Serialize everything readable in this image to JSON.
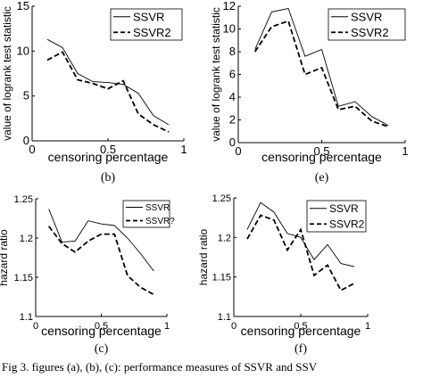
{
  "figure": {
    "caption": "Fig 3.  figures (a), (b), (c): performance measures of SSVR and SSV"
  },
  "chart_data": [
    {
      "type": "line",
      "panel_label": "(b)",
      "xlabel": "censoring percentage",
      "ylabel": "value of logrank test statistic",
      "xlim": [
        0,
        1
      ],
      "ylim": [
        0,
        15
      ],
      "xticks": [
        "0",
        "0.5",
        "1"
      ],
      "yticks": [
        "0",
        "5",
        "10",
        "15"
      ],
      "legend_position": "top-right",
      "series": [
        {
          "name": "SSVR",
          "dash": "solid",
          "x": [
            0.1,
            0.2,
            0.3,
            0.4,
            0.5,
            0.6,
            0.7,
            0.8,
            0.9
          ],
          "y": [
            11.3,
            10.4,
            7.5,
            6.6,
            6.5,
            6.3,
            5.3,
            2.8,
            1.8
          ]
        },
        {
          "name": "SSVR2",
          "dash": "dashed",
          "x": [
            0.1,
            0.2,
            0.3,
            0.4,
            0.5,
            0.6,
            0.7,
            0.8,
            0.9
          ],
          "y": [
            9.0,
            9.9,
            6.8,
            6.4,
            5.8,
            6.7,
            3.0,
            1.8,
            1.0
          ]
        }
      ]
    },
    {
      "type": "line",
      "panel_label": "(e)",
      "xlabel": "censoring percentage",
      "ylabel": "value of logrank test statistic",
      "xlim": [
        0,
        1
      ],
      "ylim": [
        0,
        12
      ],
      "xticks": [
        "0",
        "0.5",
        "1"
      ],
      "yticks": [
        "0",
        "2",
        "4",
        "6",
        "8",
        "10",
        "12"
      ],
      "legend_position": "top-right",
      "series": [
        {
          "name": "SSVR",
          "dash": "solid",
          "x": [
            0.1,
            0.2,
            0.3,
            0.4,
            0.5,
            0.6,
            0.7,
            0.8,
            0.9
          ],
          "y": [
            8.2,
            11.5,
            11.8,
            7.6,
            8.2,
            3.2,
            3.6,
            2.3,
            1.5
          ]
        },
        {
          "name": "SSVR2",
          "dash": "dashed",
          "x": [
            0.1,
            0.2,
            0.3,
            0.4,
            0.5,
            0.6,
            0.7,
            0.8,
            0.9
          ],
          "y": [
            8.0,
            10.2,
            10.7,
            6.0,
            6.6,
            2.9,
            3.2,
            1.9,
            1.4
          ]
        }
      ]
    },
    {
      "type": "line",
      "panel_label": "(c)",
      "xlabel": "censoring percentage",
      "ylabel": "hazard ratio",
      "xlim": [
        0,
        1
      ],
      "ylim": [
        1.1,
        1.25
      ],
      "xticks": [
        "0",
        "0.5",
        "1"
      ],
      "yticks": [
        "1.1",
        "1.15",
        "1.2",
        "1.25"
      ],
      "legend_position": "top-right",
      "series": [
        {
          "name": "SSVR",
          "dash": "solid",
          "x": [
            0.1,
            0.2,
            0.3,
            0.4,
            0.5,
            0.6,
            0.7,
            0.8,
            0.9
          ],
          "y": [
            1.237,
            1.195,
            1.196,
            1.222,
            1.218,
            1.216,
            1.2,
            1.18,
            1.158
          ]
        },
        {
          "name": "SSVR?",
          "dash": "dashed",
          "x": [
            0.1,
            0.2,
            0.3,
            0.4,
            0.5,
            0.6,
            0.7,
            0.8,
            0.9
          ],
          "y": [
            1.215,
            1.193,
            1.182,
            1.196,
            1.205,
            1.205,
            1.152,
            1.137,
            1.128
          ]
        }
      ]
    },
    {
      "type": "line",
      "panel_label": "(f)",
      "xlabel": "censoring percentage",
      "ylabel": "hazard ratio",
      "xlim": [
        0,
        1
      ],
      "ylim": [
        1.1,
        1.25
      ],
      "xticks": [
        "0",
        "0.5",
        "1"
      ],
      "yticks": [
        "1.1",
        "1.15",
        "1.2",
        "1.25"
      ],
      "legend_position": "top-right",
      "series": [
        {
          "name": "SSVR",
          "dash": "solid",
          "x": [
            0.1,
            0.2,
            0.3,
            0.4,
            0.5,
            0.6,
            0.7,
            0.8,
            0.9
          ],
          "y": [
            1.21,
            1.244,
            1.232,
            1.205,
            1.2,
            1.172,
            1.191,
            1.167,
            1.163
          ]
        },
        {
          "name": "SSVR2",
          "dash": "dashed",
          "x": [
            0.1,
            0.2,
            0.3,
            0.4,
            0.5,
            0.6,
            0.7,
            0.8,
            0.9
          ],
          "y": [
            1.198,
            1.228,
            1.222,
            1.184,
            1.21,
            1.152,
            1.165,
            1.133,
            1.142
          ]
        }
      ]
    }
  ]
}
